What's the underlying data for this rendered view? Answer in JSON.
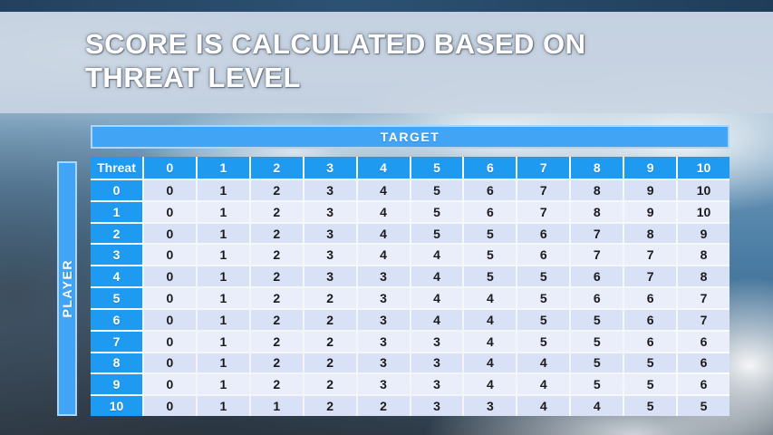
{
  "slide": {
    "title_line1": "SCORE IS CALCULATED BASED ON",
    "title_line2": "THREAT LEVEL"
  },
  "table": {
    "target_label": "TARGET",
    "player_label": "PLAYER",
    "corner_label": "Threat",
    "column_headers": [
      "0",
      "1",
      "2",
      "3",
      "4",
      "5",
      "6",
      "7",
      "8",
      "9",
      "10"
    ],
    "rows": [
      {
        "threat": "0",
        "scores": [
          0,
          1,
          2,
          3,
          4,
          5,
          6,
          7,
          8,
          9,
          10
        ]
      },
      {
        "threat": "1",
        "scores": [
          0,
          1,
          2,
          3,
          4,
          5,
          6,
          7,
          8,
          9,
          10
        ]
      },
      {
        "threat": "2",
        "scores": [
          0,
          1,
          2,
          3,
          4,
          5,
          5,
          6,
          7,
          8,
          9
        ]
      },
      {
        "threat": "3",
        "scores": [
          0,
          1,
          2,
          3,
          4,
          4,
          5,
          6,
          7,
          7,
          8
        ]
      },
      {
        "threat": "4",
        "scores": [
          0,
          1,
          2,
          3,
          3,
          4,
          5,
          5,
          6,
          7,
          8
        ]
      },
      {
        "threat": "5",
        "scores": [
          0,
          1,
          2,
          2,
          3,
          4,
          4,
          5,
          6,
          6,
          7
        ]
      },
      {
        "threat": "6",
        "scores": [
          0,
          1,
          2,
          2,
          3,
          4,
          4,
          5,
          5,
          6,
          7
        ]
      },
      {
        "threat": "7",
        "scores": [
          0,
          1,
          2,
          2,
          3,
          3,
          4,
          5,
          5,
          6,
          6
        ]
      },
      {
        "threat": "8",
        "scores": [
          0,
          1,
          2,
          2,
          3,
          3,
          4,
          4,
          5,
          5,
          6
        ]
      },
      {
        "threat": "9",
        "scores": [
          0,
          1,
          2,
          2,
          3,
          3,
          4,
          4,
          5,
          5,
          6
        ]
      },
      {
        "threat": "10",
        "scores": [
          0,
          1,
          1,
          2,
          2,
          3,
          3,
          4,
          4,
          5,
          5
        ]
      }
    ]
  },
  "colors": {
    "header_blue": "#1E9BF1",
    "bar_blue": "#42A4F5",
    "bar_border": "#ABD6F8",
    "row_dark": "#D8E1F5",
    "row_light": "#EAEEFA",
    "cell_text": "#1B1B1D",
    "title_text": "#FFFFFF",
    "title_band": "#CBD5E2",
    "top_strip": "#2A4C6B"
  }
}
